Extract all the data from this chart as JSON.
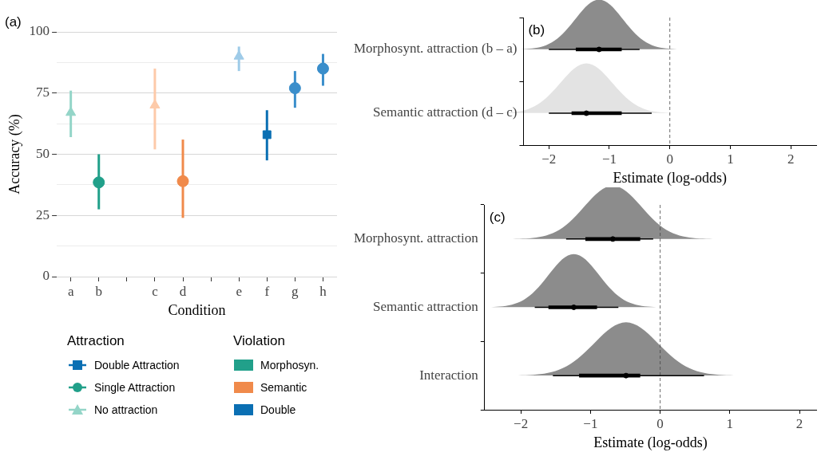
{
  "chart_data": [
    {
      "type": "scatter",
      "title": "(a)",
      "xlabel": "Condition",
      "ylabel": "Accuracy (%)",
      "legend_title": "Attraction",
      "legend": "bottom",
      "grid": "y",
      "categories": [
        "a",
        "b",
        null,
        "c",
        "d",
        null,
        "e",
        "f",
        "g",
        "h"
      ],
      "ylim": [
        0,
        100
      ],
      "yticks": [
        0,
        {
          "value": 12.5,
          "label": null
        },
        25,
        {
          "value": 37.5,
          "label": null
        },
        50,
        {
          "value": 62.5,
          "label": null
        },
        75,
        {
          "value": 87.5,
          "label": null
        },
        100
      ],
      "series": [
        {
          "name": "Double Attraction",
          "marker": "square",
          "values": [
            null,
            null,
            null,
            null,
            null,
            null,
            null,
            58,
            null,
            null
          ],
          "errors": [
            null,
            null,
            null,
            null,
            null,
            null,
            null,
            [
              47.5,
              68
            ],
            null,
            null
          ],
          "colors": [
            null,
            null,
            null,
            null,
            null,
            null,
            null,
            "#0a6fb3",
            null,
            null
          ]
        },
        {
          "name": "Single Attraction",
          "marker": "circle",
          "values": [
            null,
            38.5,
            null,
            null,
            39,
            null,
            null,
            null,
            77,
            85
          ],
          "errors": [
            null,
            [
              27.5,
              50
            ],
            null,
            null,
            [
              24,
              56
            ],
            null,
            null,
            null,
            [
              69,
              84
            ],
            [
              78,
              91
            ]
          ],
          "colors": [
            null,
            "#21a08a",
            null,
            null,
            "#f08a4b",
            null,
            null,
            null,
            "#3a8ecb",
            "#3a8ecb"
          ]
        },
        {
          "name": "No attraction",
          "marker": "triangle",
          "values": [
            67,
            null,
            null,
            70,
            null,
            null,
            90,
            null,
            null,
            null
          ],
          "errors": [
            [
              57,
              76
            ],
            null,
            null,
            [
              52,
              85
            ],
            null,
            null,
            [
              84,
              94
            ],
            null,
            null,
            null
          ],
          "colors": [
            "#94d5c8",
            null,
            null,
            "#fdcaa9",
            null,
            null,
            "#9ecbe8",
            null,
            null,
            null
          ]
        }
      ],
      "annotations": [
        "Violation",
        "Morphosyn.",
        "Semantic",
        "Double"
      ]
    },
    {
      "type": "box",
      "title": "(b)",
      "xlabel": "Estimate (log-odds)",
      "orientation": "horizontal",
      "categories": [
        "Morphosynt. attraction (b – a)",
        "Semantic attraction (d – c)"
      ],
      "xlim": [
        -2.42,
        2.42
      ],
      "xticks": [
        -2,
        -1,
        0,
        1,
        2
      ],
      "boxes": [
        {
          "low": -2.0,
          "q1": -1.55,
          "median": -1.17,
          "q3": -0.8,
          "high": -0.5
        },
        {
          "low": -2.0,
          "q1": -1.62,
          "median": -1.38,
          "q3": -0.8,
          "high": -0.3
        }
      ],
      "colors": [
        "#000000",
        "#000000"
      ],
      "ref_lines": [
        {
          "axis": "x",
          "value": 0,
          "line_style": "dashed"
        }
      ]
    },
    {
      "type": "box",
      "title": "(c)",
      "xlabel": "Estimate (log-odds)",
      "orientation": "horizontal",
      "categories": [
        "Morphosynt. attraction",
        "Semantic attraction",
        "Interaction"
      ],
      "xlim": [
        -2.52,
        2.24
      ],
      "xticks": [
        -2,
        -1,
        0,
        1,
        2
      ],
      "boxes": [
        {
          "low": -1.35,
          "q1": -1.07,
          "median": -0.68,
          "q3": -0.29,
          "high": -0.1
        },
        {
          "low": -1.8,
          "q1": -1.6,
          "median": -1.24,
          "q3": -0.91,
          "high": -0.6
        },
        {
          "low": -1.54,
          "q1": -1.16,
          "median": -0.49,
          "q3": -0.29,
          "high": 0.63
        }
      ],
      "colors": [
        "#000000",
        "#000000",
        "#000000"
      ],
      "ref_lines": [
        {
          "axis": "x",
          "value": 0,
          "line_style": "dashed"
        }
      ]
    }
  ]
}
